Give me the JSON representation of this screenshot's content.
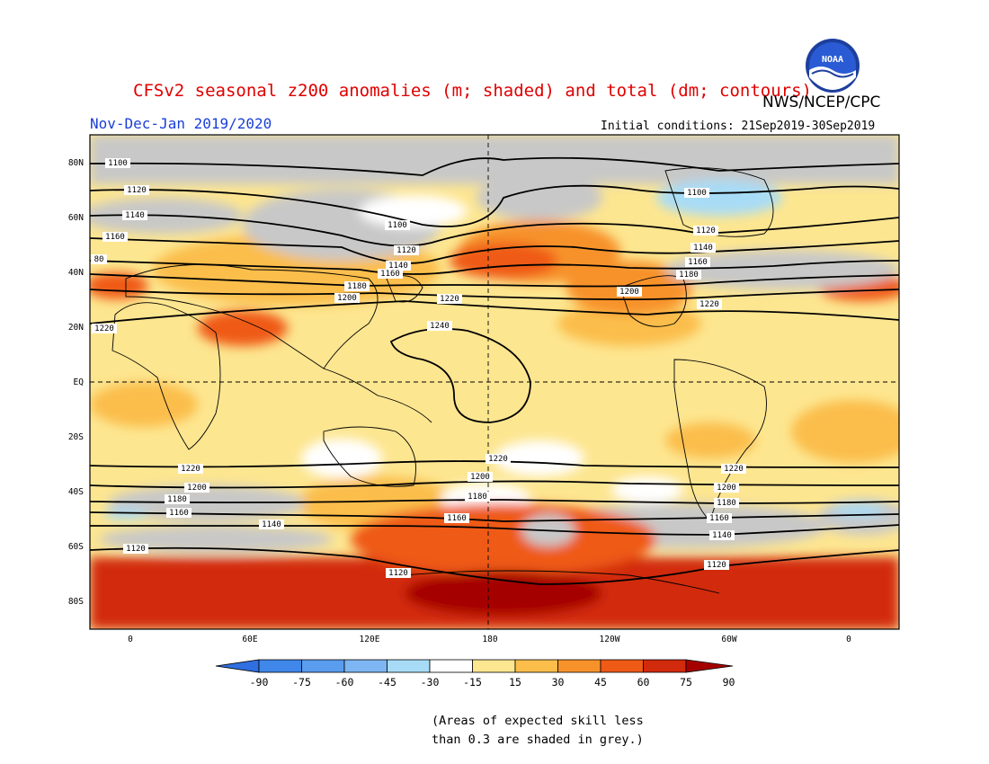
{
  "header": {
    "title": "CFSv2 seasonal z200 anomalies (m; shaded) and total (dm; contours)",
    "agency": "NWS/NCEP/CPC",
    "season": "Nov-Dec-Jan 2019/2020",
    "initial_conditions": "Initial conditions: 21Sep2019-30Sep2019"
  },
  "logo": {
    "text": "NOAA",
    "icon": "noaa-logo"
  },
  "map": {
    "lat_labels": [
      "80N",
      "60N",
      "40N",
      "20N",
      "EQ",
      "20S",
      "40S",
      "60S",
      "80S"
    ],
    "lon_labels": [
      "0",
      "60E",
      "120E",
      "180",
      "120W",
      "60W",
      "0"
    ],
    "contour_labels": [
      "1100",
      "1120",
      "1140",
      "1160",
      "1180",
      "1200",
      "1220",
      "1240",
      "1100",
      "1120",
      "1140",
      "1160",
      "1180",
      "1200",
      "1220",
      "1220",
      "1200",
      "1180",
      "1160",
      "1140",
      "1120",
      "1120",
      "1160",
      "1180",
      "1200",
      "1220",
      "1100",
      "1120",
      "1140",
      "1160",
      "1180",
      "1200",
      "1220",
      "1220",
      "1200",
      "1180",
      "1160",
      "1140",
      "1120",
      "80"
    ]
  },
  "colorbar": {
    "ticks": [
      "-90",
      "-75",
      "-60",
      "-45",
      "-30",
      "-15",
      "15",
      "30",
      "45",
      "60",
      "75",
      "90"
    ],
    "colors": [
      "#2f6fe0",
      "#3f87e8",
      "#5a9cee",
      "#7db6f2",
      "#a8dcf6",
      "#ffffff",
      "#fde690",
      "#fbbe4b",
      "#f7922a",
      "#ef5a16",
      "#d22a0c",
      "#a50000"
    ]
  },
  "note": {
    "line1": "(Areas of expected skill less",
    "line2": "than 0.3 are shaded in grey.)"
  }
}
